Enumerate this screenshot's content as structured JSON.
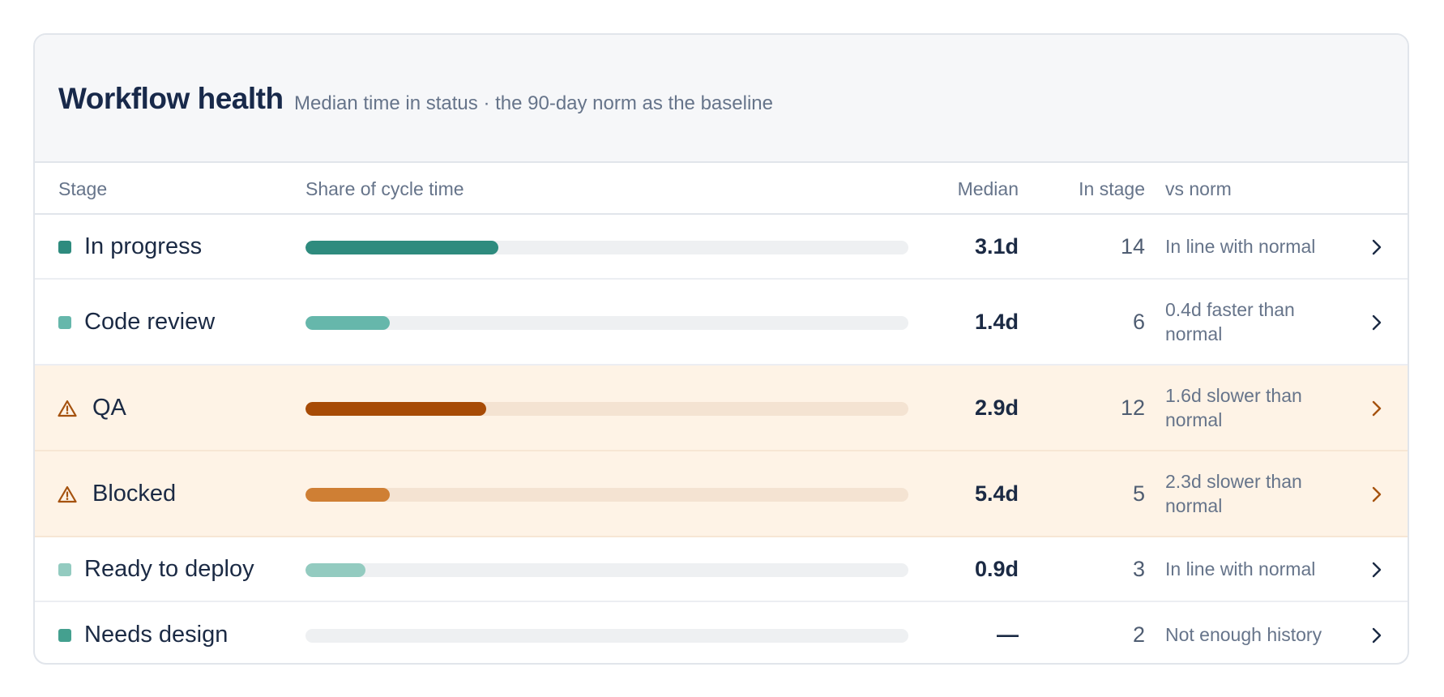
{
  "header": {
    "title": "Workflow health",
    "subtitle": "Median time in status · the 90-day norm as the baseline"
  },
  "columns": {
    "stage": "Stage",
    "share": "Share of cycle time",
    "median": "Median",
    "in_stage": "In stage",
    "vs_norm": "vs norm"
  },
  "rows": [
    {
      "stage": "In progress",
      "share_pct": 32,
      "median": "3.1d",
      "in_stage": "14",
      "vs_norm": "In line with normal",
      "status": "normal",
      "color": "#2e8b7e"
    },
    {
      "stage": "Code review",
      "share_pct": 14,
      "median": "1.4d",
      "in_stage": "6",
      "vs_norm": "0.4d faster than normal",
      "status": "normal",
      "color": "#66b7ab"
    },
    {
      "stage": "QA",
      "share_pct": 30,
      "median": "2.9d",
      "in_stage": "12",
      "vs_norm": "1.6d slower than normal",
      "status": "warning",
      "color": "#a74b06"
    },
    {
      "stage": "Blocked",
      "share_pct": 14,
      "median": "5.4d",
      "in_stage": "5",
      "vs_norm": "2.3d slower than normal",
      "status": "warning",
      "color": "#cf7f34"
    },
    {
      "stage": "Ready to deploy",
      "share_pct": 10,
      "median": "0.9d",
      "in_stage": "3",
      "vs_norm": "In line with normal",
      "status": "normal",
      "color": "#93cbc0"
    },
    {
      "stage": "Needs design",
      "share_pct": 0,
      "median": "—",
      "in_stage": "2",
      "vs_norm": "Not enough history",
      "status": "normal",
      "color": "#44a08f"
    }
  ],
  "icons": {
    "warning": "warning-triangle-icon",
    "chevron": "chevron-right-icon"
  },
  "colors": {
    "warning_accent": "#a5520f",
    "warning_row_bg": "#fef3e6"
  }
}
